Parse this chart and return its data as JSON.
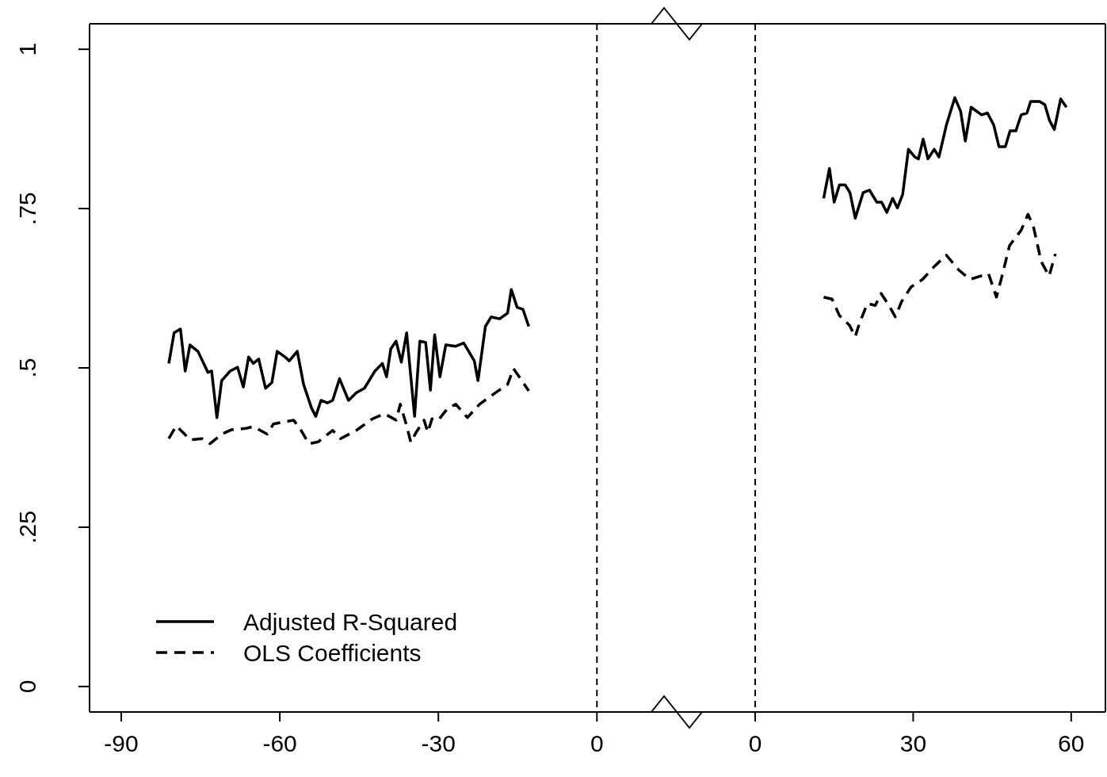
{
  "chart_data": [
    {
      "type": "line",
      "xlim": [
        -96,
        14.5
      ],
      "xticks": [
        -90,
        -60,
        -30,
        0
      ],
      "ylim": [
        -0.04,
        1.04
      ],
      "yticks": [
        0,
        {
          "value": 0.25,
          "label": ".25"
        },
        {
          "value": 0.5,
          "label": ".5"
        },
        {
          "value": 0.75,
          "label": ".75"
        },
        1
      ],
      "grid": false,
      "legend": "bottom left",
      "ref_lines": [
        {
          "axis": "x",
          "value": 0,
          "line_style": "dashed",
          "color": "#000000"
        }
      ],
      "series": [
        {
          "name": "Adjusted R-Squared",
          "color": "#000000",
          "line_style": "solid",
          "x": [
            -81,
            -80,
            -78.8,
            -77.9,
            -77,
            -75.5,
            -73.6,
            -72.9,
            -71.9,
            -71,
            -69.4,
            -68,
            -66.9,
            -65.9,
            -65,
            -64,
            -62.7,
            -61.5,
            -60.5,
            -59,
            -58.2,
            -56.7,
            -55.5,
            -54,
            -53.2,
            -52.2,
            -51,
            -50,
            -48.7,
            -47,
            -45.5,
            -44,
            -42,
            -40.6,
            -39.8,
            -39,
            -38,
            -37,
            -36,
            -34.5,
            -33.5,
            -32.4,
            -31.5,
            -30.7,
            -29.7,
            -28.6,
            -26.7,
            -25.2,
            -23.2,
            -22.5,
            -21.1,
            -20,
            -18.4,
            -16.9,
            -16.2,
            -15.1,
            -14,
            -12.9
          ],
          "values": [
            0.507,
            0.555,
            0.561,
            0.495,
            0.536,
            0.526,
            0.493,
            0.495,
            0.422,
            0.48,
            0.495,
            0.501,
            0.47,
            0.517,
            0.507,
            0.514,
            0.468,
            0.477,
            0.526,
            0.517,
            0.511,
            0.526,
            0.474,
            0.437,
            0.424,
            0.449,
            0.445,
            0.449,
            0.483,
            0.449,
            0.461,
            0.468,
            0.495,
            0.507,
            0.486,
            0.53,
            0.542,
            0.509,
            0.555,
            0.424,
            0.542,
            0.54,
            0.465,
            0.552,
            0.486,
            0.536,
            0.534,
            0.539,
            0.511,
            0.48,
            0.565,
            0.58,
            0.577,
            0.586,
            0.623,
            0.595,
            0.592,
            0.565
          ]
        },
        {
          "name": "OLS Coefficients",
          "color": "#000000",
          "line_style": "dashed",
          "x": [
            -81,
            -79.6,
            -78,
            -77,
            -74.7,
            -73.2,
            -71,
            -69.1,
            -66.4,
            -65,
            -62.4,
            -61.2,
            -57.4,
            -56.2,
            -54.5,
            -52.7,
            -50,
            -48.5,
            -45.5,
            -42.5,
            -40.2,
            -38,
            -37.2,
            -36.1,
            -35.2,
            -34.2,
            -32.7,
            -32,
            -31.2,
            -30,
            -28.2,
            -26.7,
            -24.5,
            -22.2,
            -19.2,
            -16.9,
            -15.8,
            -14.7,
            -12.9
          ],
          "values": [
            0.389,
            0.409,
            0.396,
            0.387,
            0.389,
            0.381,
            0.396,
            0.403,
            0.405,
            0.408,
            0.396,
            0.412,
            0.418,
            0.405,
            0.381,
            0.384,
            0.402,
            0.389,
            0.402,
            0.42,
            0.428,
            0.418,
            0.443,
            0.412,
            0.383,
            0.399,
            0.418,
            0.399,
            0.42,
            0.418,
            0.437,
            0.443,
            0.422,
            0.443,
            0.461,
            0.474,
            0.499,
            0.486,
            0.464
          ]
        }
      ]
    },
    {
      "type": "line",
      "xlim": [
        -15.5,
        66.5
      ],
      "xticks": [
        0,
        30,
        60
      ],
      "ylim": [
        -0.04,
        1.04
      ],
      "tick_labels": "x",
      "grid": false,
      "ref_lines": [
        {
          "axis": "x",
          "value": 0,
          "line_style": "dashed",
          "color": "#000000"
        }
      ],
      "series": [
        {
          "color": "#000000",
          "line_style": "solid",
          "x": [
            13,
            14.1,
            15,
            16,
            17.1,
            18,
            19,
            20.5,
            21.7,
            23.1,
            24,
            25,
            26.1,
            27,
            28,
            29.1,
            30.3,
            31,
            31.9,
            32.8,
            34,
            34.9,
            36.3,
            37.9,
            39,
            39.9,
            41,
            43,
            44.1,
            45.3,
            46.3,
            47.5,
            48.4,
            49.5,
            50.5,
            51.6,
            52.3,
            54,
            55,
            55.9,
            56.8,
            58,
            59.1
          ],
          "values": [
            0.766,
            0.813,
            0.76,
            0.787,
            0.787,
            0.775,
            0.735,
            0.775,
            0.779,
            0.76,
            0.76,
            0.744,
            0.766,
            0.751,
            0.772,
            0.843,
            0.831,
            0.828,
            0.859,
            0.828,
            0.843,
            0.831,
            0.881,
            0.924,
            0.903,
            0.856,
            0.909,
            0.897,
            0.9,
            0.881,
            0.847,
            0.847,
            0.872,
            0.872,
            0.897,
            0.9,
            0.918,
            0.918,
            0.913,
            0.888,
            0.874,
            0.922,
            0.909
          ]
        },
        {
          "color": "#000000",
          "line_style": "dashed",
          "x": [
            13,
            14.6,
            16,
            17.9,
            19,
            19.8,
            21.3,
            22.8,
            23.9,
            25.4,
            26.6,
            27.8,
            29.6,
            31.8,
            34.1,
            36.3,
            38.6,
            40.8,
            44.3,
            45.8,
            46.8,
            48.3,
            50.5,
            51.8,
            52.8,
            54.3,
            55.8,
            57
          ],
          "values": [
            0.611,
            0.608,
            0.582,
            0.567,
            0.549,
            0.57,
            0.601,
            0.598,
            0.617,
            0.598,
            0.58,
            0.604,
            0.627,
            0.639,
            0.66,
            0.677,
            0.654,
            0.639,
            0.648,
            0.611,
            0.642,
            0.692,
            0.716,
            0.741,
            0.723,
            0.667,
            0.644,
            0.679
          ]
        }
      ]
    }
  ]
}
